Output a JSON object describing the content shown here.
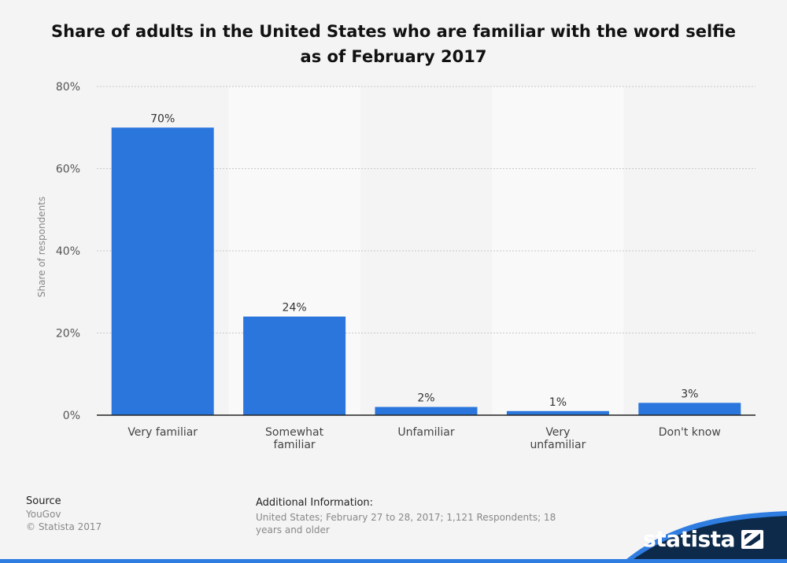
{
  "title": "Share of adults in the United States who are familiar with the word selfie as of February 2017",
  "chart_data": {
    "type": "bar",
    "categories": [
      "Very familiar",
      "Somewhat familiar",
      "Unfamiliar",
      "Very unfamiliar",
      "Don't know"
    ],
    "values": [
      70,
      24,
      2,
      1,
      3
    ],
    "data_labels": [
      "70%",
      "24%",
      "2%",
      "1%",
      "3%"
    ],
    "ylabel": "Share of respondents",
    "xlabel": "",
    "ylim": [
      0,
      80
    ],
    "yticks": [
      0,
      20,
      40,
      60,
      80
    ],
    "ytick_labels": [
      "0%",
      "20%",
      "40%",
      "60%",
      "80%"
    ],
    "grid": true,
    "bar_color": "#2a76dd"
  },
  "source": {
    "heading": "Source",
    "name": "YouGov",
    "copyright": "© Statista 2017"
  },
  "additional_info": {
    "heading": "Additional Information:",
    "text": "United States; February 27 to 28, 2017; 1,121 Respondents; 18 years and older"
  },
  "brand": {
    "name": "statista",
    "dark_color": "#0d2a4a",
    "accent_color": "#2f7de1"
  }
}
